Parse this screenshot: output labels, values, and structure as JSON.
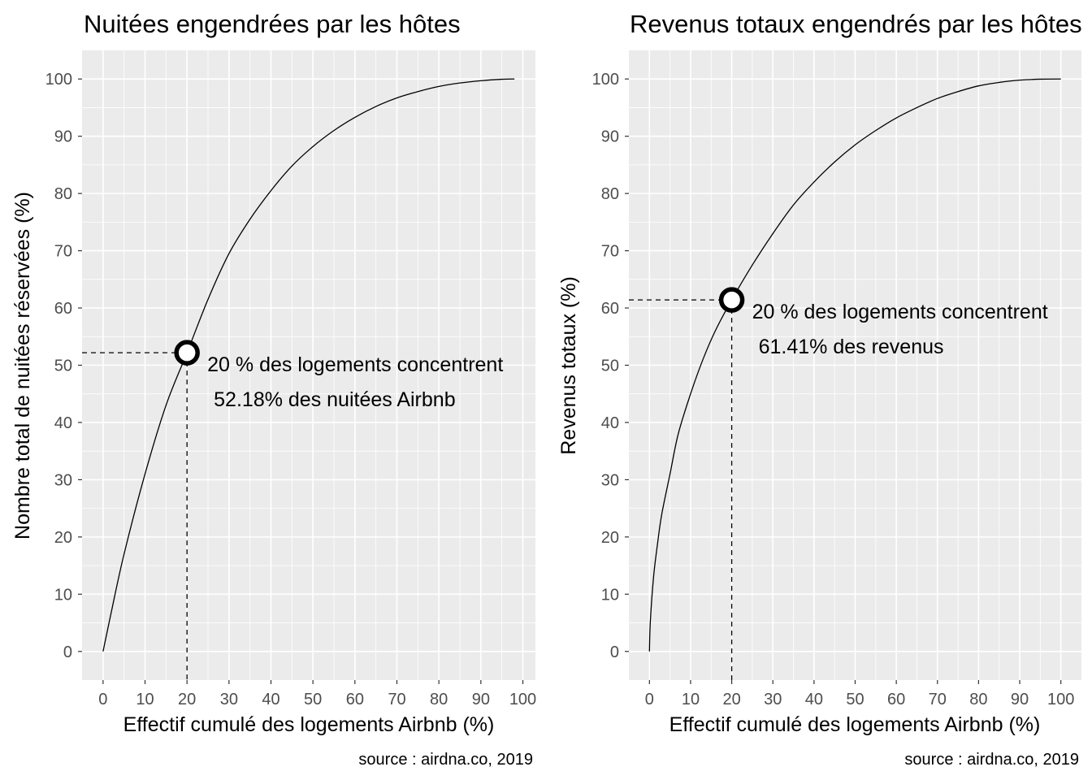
{
  "chart_data": [
    {
      "type": "line",
      "title": "Nuitées engendrées par les hôtes",
      "xlabel": "Effectif cumulé des logements Airbnb (%)",
      "ylabel": "Nombre total de nuitées réservées (%)",
      "xlim": [
        -5,
        103
      ],
      "ylim": [
        -5,
        105
      ],
      "x_ticks": [
        "0",
        "10",
        "20",
        "30",
        "40",
        "50",
        "60",
        "70",
        "80",
        "90",
        "100"
      ],
      "y_ticks": [
        "0",
        "10",
        "20",
        "30",
        "40",
        "50",
        "60",
        "70",
        "80",
        "90",
        "100"
      ],
      "grid": true,
      "x": [
        0,
        2,
        5,
        10,
        15,
        20,
        25,
        30,
        35,
        40,
        45,
        50,
        55,
        60,
        65,
        70,
        75,
        80,
        85,
        90,
        95,
        98
      ],
      "y": [
        0,
        7,
        17,
        31,
        43,
        52.18,
        61.5,
        69.5,
        75.5,
        80.5,
        84.8,
        88.2,
        91,
        93.3,
        95.2,
        96.7,
        97.8,
        98.7,
        99.3,
        99.7,
        99.95,
        100
      ],
      "highlight": {
        "x": 20,
        "y": 52.18
      },
      "annotation_line1": "20 % des logements concentrent",
      "annotation_line2": "52.18% des nuitées Airbnb",
      "caption": "source : airdna.co, 2019"
    },
    {
      "type": "line",
      "title": "Revenus totaux engendrés par les hôtes",
      "xlabel": "Effectif cumulé des logements Airbnb (%)",
      "ylabel": "Revenus totaux (%)",
      "xlim": [
        -5,
        105
      ],
      "ylim": [
        -5,
        105
      ],
      "x_ticks": [
        "0",
        "10",
        "20",
        "30",
        "40",
        "50",
        "60",
        "70",
        "80",
        "90",
        "100"
      ],
      "y_ticks": [
        "0",
        "10",
        "20",
        "30",
        "40",
        "50",
        "60",
        "70",
        "80",
        "90",
        "100"
      ],
      "grid": true,
      "x": [
        0,
        0.2,
        1,
        2,
        3,
        5,
        7,
        10,
        13,
        16,
        20,
        25,
        30,
        35,
        40,
        45,
        50,
        55,
        60,
        65,
        70,
        75,
        80,
        85,
        90,
        95,
        100
      ],
      "y": [
        0,
        5,
        13,
        19,
        24,
        31,
        38,
        45,
        51,
        56,
        61.41,
        67.5,
        73,
        78,
        82,
        85.5,
        88.5,
        91,
        93.2,
        95,
        96.6,
        97.8,
        98.8,
        99.4,
        99.8,
        99.97,
        100
      ],
      "highlight": {
        "x": 20,
        "y": 61.41
      },
      "annotation_line1": "20 % des logements concentrent",
      "annotation_line2": "61.41% des revenus",
      "caption": "source : airdna.co, 2019"
    }
  ]
}
